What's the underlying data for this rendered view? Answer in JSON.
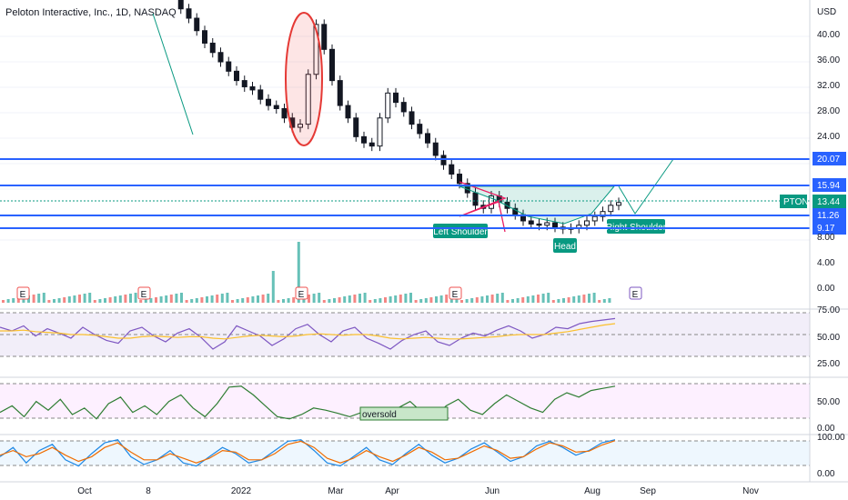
{
  "header": {
    "title": "Peloton Interactive, Inc., 1D, NASDAQ"
  },
  "colors": {
    "up": "#26a69a",
    "down": "#ef5350",
    "level": "#2962ff",
    "tag_green": "#089981",
    "rsi_band": "#7e57c2",
    "stoch_line": "#2e7d32",
    "macd_fast": "#1e88e5",
    "macd_slow": "#ef6c00"
  },
  "chart_data": [
    {
      "type": "candlestick",
      "symbol": "PTON",
      "currency": "USD",
      "ylim": [
        0,
        44
      ],
      "y_ticks": [
        "40.00",
        "36.00",
        "32.00",
        "28.00",
        "24.00",
        "8.00",
        "4.00",
        "0.00"
      ],
      "x_ticks": [
        "Oct",
        "8",
        "2022",
        "Mar",
        "Apr",
        "Jun",
        "Aug",
        "Sep",
        "Nov"
      ],
      "last_price": {
        "label": "PTON",
        "value": "13.44"
      },
      "levels": [
        {
          "value": 20.07,
          "label": "20.07"
        },
        {
          "value": 15.94,
          "label": "15.94"
        },
        {
          "value": 11.26,
          "label": "11.26"
        },
        {
          "value": 9.17,
          "label": "9.17"
        }
      ],
      "price_path": [
        46,
        44.5,
        43,
        41,
        39,
        37.5,
        36,
        34.5,
        33,
        32,
        31.5,
        30,
        29,
        28.5,
        27,
        25.5,
        26,
        34,
        42,
        38,
        33,
        29,
        27,
        24,
        23,
        22.5,
        27,
        31,
        29.5,
        28,
        26,
        24.5,
        23,
        21,
        19.5,
        18,
        16.5,
        15,
        13,
        12.5,
        14.5,
        13.5,
        12.5,
        11.5,
        10.5,
        10,
        9.8,
        10.2,
        9.5,
        9.2,
        9.3,
        9.8,
        10.5,
        11.2,
        12,
        13,
        13.44
      ],
      "annotations": [
        "Left Shoulder",
        "Head",
        "Right Shoulder"
      ],
      "volume_markers": [
        "E",
        "E",
        "E",
        "E",
        "E"
      ]
    },
    {
      "type": "line",
      "name": "RSI",
      "y_ticks": [
        "75.00",
        "50.00",
        "25.00"
      ],
      "series": [
        {
          "values": [
            60,
            55,
            62,
            48,
            58,
            52,
            45,
            60,
            50,
            42,
            38,
            55,
            60,
            48,
            40,
            52,
            58,
            46,
            30,
            40,
            62,
            55,
            48,
            35,
            44,
            58,
            64,
            50,
            40,
            55,
            60,
            45,
            38,
            30,
            42,
            50,
            55,
            40,
            35,
            45,
            52,
            48,
            56,
            62,
            55,
            45,
            50,
            60,
            58,
            65,
            68,
            70,
            72
          ]
        },
        {
          "values": [
            55,
            55,
            56,
            54,
            53,
            52,
            50,
            50,
            49,
            47,
            45,
            45,
            47,
            48,
            47,
            46,
            47,
            47,
            45,
            44,
            46,
            48,
            49,
            48,
            47,
            48,
            50,
            51,
            50,
            49,
            50,
            50,
            48,
            45,
            44,
            45,
            46,
            45,
            44,
            44,
            45,
            46,
            47,
            49,
            50,
            50,
            50,
            52,
            54,
            57,
            60,
            63,
            65
          ]
        }
      ]
    },
    {
      "type": "line",
      "name": "Stochastic",
      "y_ticks": [
        "50.00",
        "0.00"
      ],
      "annotation": "oversold",
      "series": [
        {
          "values": [
            30,
            45,
            20,
            55,
            35,
            60,
            25,
            40,
            15,
            50,
            65,
            30,
            45,
            25,
            55,
            70,
            40,
            20,
            50,
            88,
            90,
            70,
            45,
            20,
            15,
            25,
            40,
            35,
            28,
            20,
            30,
            22,
            15,
            40,
            55,
            30,
            18,
            45,
            60,
            35,
            25,
            50,
            70,
            55,
            40,
            30,
            60,
            75,
            65,
            80,
            85,
            90
          ]
        }
      ]
    },
    {
      "type": "line",
      "name": "MACD",
      "y_ticks": [
        "100.00",
        "0.00"
      ],
      "series": [
        {
          "values": [
            40,
            70,
            20,
            60,
            80,
            30,
            10,
            50,
            85,
            95,
            40,
            15,
            30,
            60,
            20,
            10,
            40,
            70,
            50,
            20,
            30,
            60,
            90,
            95,
            60,
            20,
            10,
            40,
            70,
            30,
            15,
            50,
            80,
            45,
            20,
            35,
            65,
            85,
            55,
            25,
            40,
            75,
            90,
            70,
            45,
            60,
            85,
            95
          ]
        },
        {
          "values": [
            45,
            60,
            40,
            50,
            70,
            45,
            25,
            40,
            70,
            85,
            55,
            30,
            30,
            50,
            35,
            20,
            35,
            60,
            55,
            30,
            30,
            50,
            80,
            90,
            70,
            35,
            20,
            35,
            60,
            40,
            25,
            45,
            70,
            55,
            30,
            35,
            55,
            75,
            60,
            35,
            40,
            65,
            85,
            75,
            55,
            58,
            78,
            92
          ]
        }
      ]
    }
  ]
}
